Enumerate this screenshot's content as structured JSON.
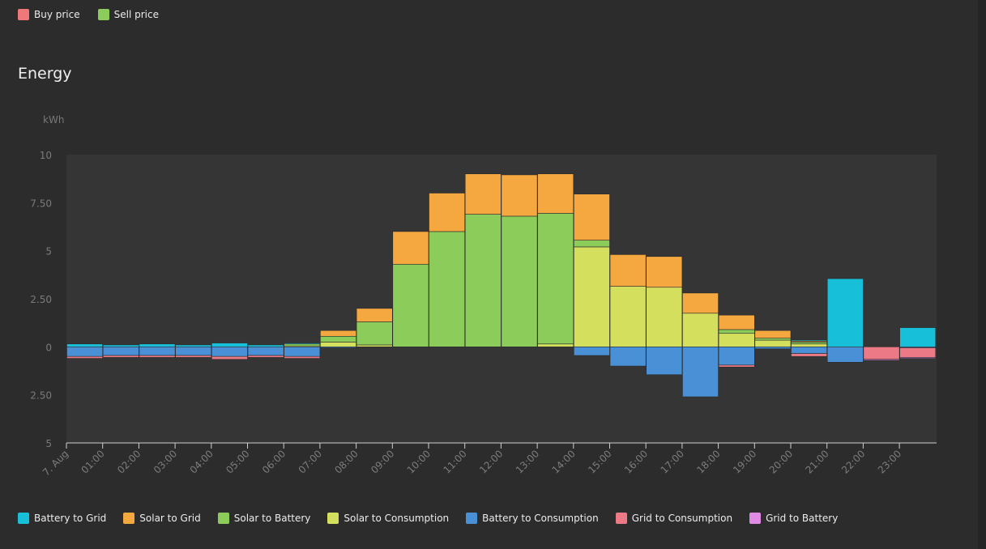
{
  "price_legend": [
    {
      "label": "Buy price",
      "color": "#f07878"
    },
    {
      "label": "Sell price",
      "color": "#8ccc5a"
    }
  ],
  "section_title": "Energy",
  "unit_label": "kWh",
  "chart_data": {
    "type": "bar",
    "stacked": true,
    "title": "Energy",
    "ylabel": "kWh",
    "ylim": [
      -5,
      10
    ],
    "yticks": [
      {
        "value": 10,
        "label": "10"
      },
      {
        "value": 7.5,
        "label": "7.50"
      },
      {
        "value": 5,
        "label": "5"
      },
      {
        "value": 2.5,
        "label": "2.50"
      },
      {
        "value": 0,
        "label": "0"
      },
      {
        "value": -2.5,
        "label": "2.50"
      },
      {
        "value": -5,
        "label": "5"
      }
    ],
    "categories": [
      "7. Aug",
      "01:00",
      "02:00",
      "03:00",
      "04:00",
      "05:00",
      "06:00",
      "07:00",
      "08:00",
      "09:00",
      "10:00",
      "11:00",
      "12:00",
      "13:00",
      "14:00",
      "15:00",
      "16:00",
      "17:00",
      "18:00",
      "19:00",
      "20:00",
      "21:00",
      "22:00",
      "23:00"
    ],
    "positive_order": [
      "Solar to Consumption",
      "Solar to Battery",
      "Solar to Grid",
      "Battery to Grid"
    ],
    "negative_order": [
      "Battery to Consumption",
      "Grid to Consumption",
      "Grid to Battery"
    ],
    "series": [
      {
        "name": "Battery to Grid",
        "color": "#17c0d8",
        "values": [
          0.15,
          0.1,
          0.15,
          0.1,
          0.2,
          0.1,
          0.05,
          0,
          0,
          0,
          0,
          0,
          0,
          0,
          0,
          0,
          0,
          0,
          0,
          0,
          0.05,
          3.55,
          0,
          1
        ]
      },
      {
        "name": "Solar to Grid",
        "color": "#f6a840",
        "values": [
          0,
          0,
          0,
          0,
          0,
          0,
          0,
          0.3,
          0.7,
          1.7,
          2,
          2.1,
          2.15,
          2.05,
          2.4,
          1.65,
          1.6,
          1.05,
          0.75,
          0.4,
          0.05,
          0,
          0,
          0
        ]
      },
      {
        "name": "Solar to Battery",
        "color": "#8ccc5a",
        "values": [
          0,
          0,
          0,
          0,
          0,
          0,
          0.1,
          0.3,
          1.2,
          4.3,
          6,
          6.9,
          6.8,
          6.8,
          0.35,
          0,
          0,
          0,
          0.2,
          0.1,
          0.1,
          0,
          0,
          0
        ]
      },
      {
        "name": "Solar to Consumption",
        "color": "#d4df5e",
        "values": [
          0,
          0,
          0,
          0,
          0,
          0,
          0.05,
          0.25,
          0.1,
          0,
          0,
          0,
          0,
          0.15,
          5.2,
          3.15,
          3.1,
          1.75,
          0.7,
          0.35,
          0.15,
          0,
          0,
          0
        ]
      },
      {
        "name": "Battery to Consumption",
        "color": "#4a90d6",
        "values": [
          -0.5,
          -0.45,
          -0.45,
          -0.45,
          -0.5,
          -0.45,
          -0.5,
          -0.05,
          0,
          0,
          0,
          0,
          0,
          0,
          -0.45,
          -1,
          -1.45,
          -2.6,
          -0.95,
          -0.1,
          -0.35,
          -0.8,
          0,
          -0.05
        ]
      },
      {
        "name": "Grid to Consumption",
        "color": "#ec7a86",
        "values": [
          -0.1,
          -0.1,
          -0.1,
          -0.1,
          -0.15,
          -0.1,
          -0.1,
          0,
          0,
          0,
          0,
          0,
          0,
          0,
          0,
          0,
          0,
          0,
          -0.1,
          0,
          -0.15,
          0,
          -0.65,
          -0.5
        ]
      },
      {
        "name": "Grid to Battery",
        "color": "#e08ae6",
        "values": [
          0,
          0,
          0,
          0,
          0,
          0,
          0,
          0,
          0,
          0,
          0,
          0,
          0,
          0,
          0,
          0,
          0,
          0,
          0,
          0,
          0,
          0,
          -0.05,
          -0.05
        ]
      }
    ]
  }
}
